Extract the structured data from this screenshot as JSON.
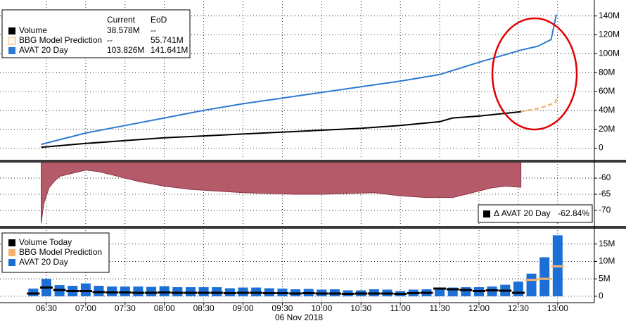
{
  "chart_data": [
    {
      "type": "line",
      "xlim": [
        354.6,
        808
      ],
      "ylim": [
        -12300000,
        156900000
      ],
      "yticks": [
        0,
        {
          "value": 20000000,
          "label": "20M"
        },
        {
          "value": 40000000,
          "label": "40M"
        },
        {
          "value": 60000000,
          "label": "60M"
        },
        {
          "value": 80000000,
          "label": "80M"
        },
        {
          "value": 100000000,
          "label": "100M"
        },
        {
          "value": 120000000,
          "label": "120M"
        },
        {
          "value": 140000000,
          "label": "140M"
        }
      ],
      "grid": true,
      "legend": {
        "headers": [
          "Current",
          "EoD"
        ],
        "rows": [
          [
            "38.578M",
            "--"
          ],
          [
            "--",
            "55.741M"
          ],
          [
            "103.826M",
            "141.641M"
          ]
        ]
      },
      "series": [
        {
          "name": "Volume",
          "color": "#000000",
          "x": [
            386,
            420,
            450,
            480,
            510,
            540,
            570,
            600,
            630,
            660,
            690,
            700,
            720,
            752
          ],
          "values": [
            1000000,
            5000000,
            8000000,
            11000000,
            13000000,
            15000000,
            17000000,
            19000000,
            21000000,
            24000000,
            28000000,
            32000000,
            34000000,
            38578000
          ]
        },
        {
          "name": "BBG Model Prediction",
          "color": "#f5b26b",
          "dash": true,
          "x": [
            752,
            765,
            772,
            778,
            780
          ],
          "values": [
            38578000,
            42000000,
            45000000,
            48000000,
            55741000
          ]
        },
        {
          "name": "AVAT 20 Day",
          "color": "#2e7ad1",
          "x": [
            386,
            420,
            450,
            480,
            510,
            540,
            570,
            600,
            630,
            660,
            690,
            720,
            752,
            765,
            775,
            779
          ],
          "values": [
            4000000,
            16000000,
            24000000,
            32000000,
            40000000,
            47000000,
            53000000,
            59000000,
            65000000,
            71000000,
            78000000,
            91000000,
            103826000,
            108000000,
            115000000,
            141641000
          ]
        }
      ]
    },
    {
      "type": "area",
      "xlim": [
        354.6,
        808
      ],
      "ylim": [
        -74.8,
        -55.2
      ],
      "yticks": [
        -60,
        -65,
        -70
      ],
      "grid": true,
      "series": [
        {
          "name": "Δ AVAT 20 Day",
          "color": "#b55a69",
          "value_label": "-62.84%",
          "x": [
            386,
            388,
            392,
            396,
            400,
            410,
            420,
            430,
            440,
            460,
            480,
            500,
            540,
            580,
            600,
            640,
            660,
            680,
            700,
            710,
            720,
            730,
            740,
            752
          ],
          "values": [
            -74,
            -68,
            -63,
            -61,
            -59.5,
            -58.5,
            -57.5,
            -58,
            -59,
            -61,
            -62.5,
            -63.5,
            -64.5,
            -65,
            -65,
            -64.5,
            -65.5,
            -66,
            -66,
            -65,
            -64,
            -63,
            -62.5,
            -62.84
          ]
        }
      ]
    },
    {
      "type": "bar",
      "xlim": [
        354.6,
        808
      ],
      "ylim": [
        -1840000,
        19390000
      ],
      "yticks": [
        0,
        {
          "value": 5000000,
          "label": "5M"
        },
        {
          "value": 10000000,
          "label": "10M"
        },
        {
          "value": 15000000,
          "label": "15M"
        }
      ],
      "xticks": [
        {
          "value": 390,
          "label": "06:30"
        },
        {
          "value": 420,
          "label": "07:00"
        },
        {
          "value": 450,
          "label": "07:30"
        },
        {
          "value": 480,
          "label": "08:00"
        },
        {
          "value": 510,
          "label": "08:30"
        },
        {
          "value": 540,
          "label": "09:00"
        },
        {
          "value": 570,
          "label": "09:30"
        },
        {
          "value": 600,
          "label": "10:00"
        },
        {
          "value": 630,
          "label": "10:30"
        },
        {
          "value": 660,
          "label": "11:00"
        },
        {
          "value": 690,
          "label": "11:30"
        },
        {
          "value": 720,
          "label": "12:00"
        },
        {
          "value": 750,
          "label": "12:30"
        },
        {
          "value": 780,
          "label": "13:00"
        }
      ],
      "xlabel": "06 Nov 2018",
      "grid": true,
      "x": [
        380,
        390,
        400,
        410,
        420,
        430,
        440,
        450,
        460,
        470,
        480,
        490,
        500,
        510,
        520,
        530,
        540,
        550,
        560,
        570,
        580,
        590,
        600,
        610,
        620,
        630,
        640,
        650,
        660,
        670,
        680,
        690,
        700,
        710,
        720,
        730,
        740,
        750,
        760,
        770,
        780
      ],
      "series": [
        {
          "name": "Volume Today",
          "color": "#000000",
          "style": "dash",
          "values": [
            800000,
            2500000,
            1800000,
            1500000,
            1500000,
            1200000,
            1100000,
            1100000,
            1000000,
            1000000,
            1100000,
            1000000,
            1000000,
            1000000,
            1000000,
            900000,
            1000000,
            1000000,
            900000,
            900000,
            800000,
            900000,
            800000,
            800000,
            700000,
            800000,
            800000,
            800000,
            700000,
            900000,
            1000000,
            2200000,
            2000000,
            1800000,
            1500000,
            1700000,
            1600000,
            1000000,
            null,
            null,
            null
          ]
        },
        {
          "name": "BBG Model Prediction",
          "color": "#f5b26b",
          "style": "dash",
          "values": [
            null,
            null,
            null,
            null,
            null,
            null,
            null,
            null,
            null,
            null,
            null,
            null,
            null,
            null,
            null,
            null,
            null,
            null,
            null,
            null,
            null,
            null,
            null,
            null,
            null,
            null,
            null,
            null,
            null,
            null,
            null,
            null,
            null,
            null,
            null,
            null,
            null,
            null,
            4700000,
            5000000,
            8600000
          ]
        },
        {
          "name": "AVAT 20 Day",
          "color": "#1c6fd6",
          "style": "bar",
          "values": [
            2200000,
            5000000,
            3200000,
            3000000,
            3700000,
            3000000,
            2800000,
            2800000,
            2800000,
            2700000,
            2900000,
            2600000,
            2600000,
            2600000,
            2600000,
            2300000,
            2500000,
            2500000,
            2300000,
            2200000,
            2000000,
            2100000,
            1900000,
            2000000,
            1700000,
            1700000,
            2000000,
            1900000,
            1500000,
            1900000,
            2000000,
            2300000,
            2500000,
            2600000,
            2600000,
            2800000,
            3300000,
            4200000,
            6500000,
            11200000,
            17500000
          ]
        }
      ]
    }
  ]
}
